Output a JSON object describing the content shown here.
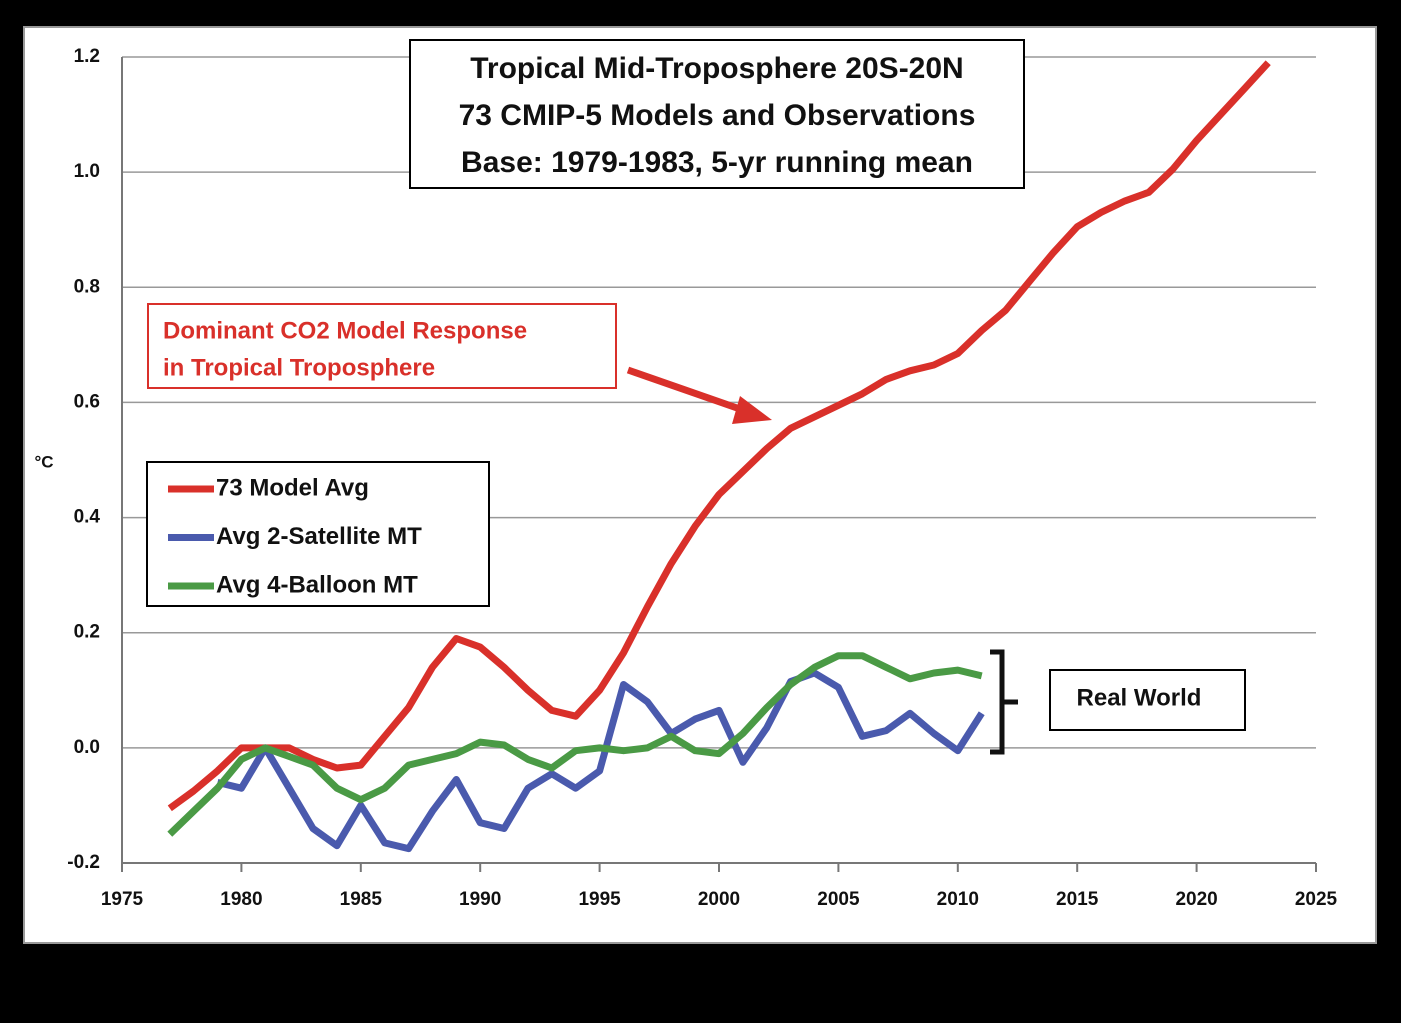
{
  "chart_data": {
    "type": "line",
    "title": [
      "Tropical Mid-Troposphere 20S-20N",
      "73 CMIP-5 Models and Observations",
      "Base: 1979-1983, 5-yr running mean"
    ],
    "y_label": "°C",
    "x": [
      1977,
      1978,
      1979,
      1980,
      1981,
      1982,
      1983,
      1984,
      1985,
      1986,
      1987,
      1988,
      1989,
      1990,
      1991,
      1992,
      1993,
      1994,
      1995,
      1996,
      1997,
      1998,
      1999,
      2000,
      2001,
      2002,
      2003,
      2004,
      2005,
      2006,
      2007,
      2008,
      2009,
      2010,
      2011,
      2012,
      2013,
      2014,
      2015,
      2016,
      2017,
      2018,
      2019,
      2020,
      2021,
      2022,
      2023
    ],
    "series": [
      {
        "name": "73 Model Avg",
        "color": "#d9302a",
        "values": [
          -0.105,
          -0.075,
          -0.04,
          0.0,
          0.0,
          0.0,
          -0.02,
          -0.035,
          -0.03,
          0.02,
          0.07,
          0.14,
          0.19,
          0.175,
          0.14,
          0.1,
          0.065,
          0.055,
          0.1,
          0.165,
          0.245,
          0.32,
          0.385,
          0.44,
          0.48,
          0.52,
          0.555,
          0.575,
          0.595,
          0.615,
          0.64,
          0.655,
          0.665,
          0.685,
          0.725,
          0.76,
          0.81,
          0.86,
          0.905,
          0.93,
          0.95,
          0.965,
          1.005,
          1.055,
          1.1,
          1.145,
          1.19
        ]
      },
      {
        "name": "Avg 2-Satellite MT",
        "color": "#4a5aad",
        "values": [
          null,
          null,
          -0.06,
          -0.07,
          0.0,
          -0.07,
          -0.14,
          -0.17,
          -0.1,
          -0.165,
          -0.175,
          -0.11,
          -0.055,
          -0.13,
          -0.14,
          -0.07,
          -0.045,
          -0.07,
          -0.04,
          0.11,
          0.08,
          0.025,
          0.05,
          0.065,
          -0.025,
          0.035,
          0.115,
          0.13,
          0.105,
          0.02,
          0.03,
          0.06,
          0.025,
          -0.005,
          0.06,
          null,
          null,
          null,
          null,
          null,
          null,
          null,
          null,
          null,
          null,
          null,
          null
        ]
      },
      {
        "name": "Avg 4-Balloon MT",
        "color": "#4a9a45",
        "values": [
          -0.15,
          -0.11,
          -0.07,
          -0.02,
          0.0,
          -0.015,
          -0.03,
          -0.07,
          -0.09,
          -0.07,
          -0.03,
          -0.02,
          -0.01,
          0.01,
          0.005,
          -0.02,
          -0.035,
          -0.005,
          0.0,
          -0.005,
          0.0,
          0.02,
          -0.005,
          -0.01,
          0.025,
          0.07,
          0.11,
          0.14,
          0.16,
          0.16,
          0.14,
          0.12,
          0.13,
          0.135,
          0.125,
          null,
          null,
          null,
          null,
          null,
          null,
          null,
          null,
          null,
          null,
          null,
          null
        ]
      }
    ],
    "xlim": [
      1975,
      2025
    ],
    "xticks": [
      1975,
      1980,
      1985,
      1990,
      1995,
      2000,
      2005,
      2010,
      2015,
      2020,
      2025
    ],
    "ylim": [
      -0.2,
      1.2
    ],
    "yticks": [
      -0.2,
      {
        "value": 0,
        "label": "0.0"
      },
      0.2,
      0.4,
      0.6,
      0.8,
      {
        "value": 1,
        "label": "1.0"
      },
      1.2
    ],
    "grid": true,
    "annotations": [
      {
        "text": [
          "Dominant CO2 Model Response",
          "in Tropical Troposphere"
        ],
        "color": "#d9302a"
      },
      {
        "text": "Real World"
      }
    ]
  }
}
